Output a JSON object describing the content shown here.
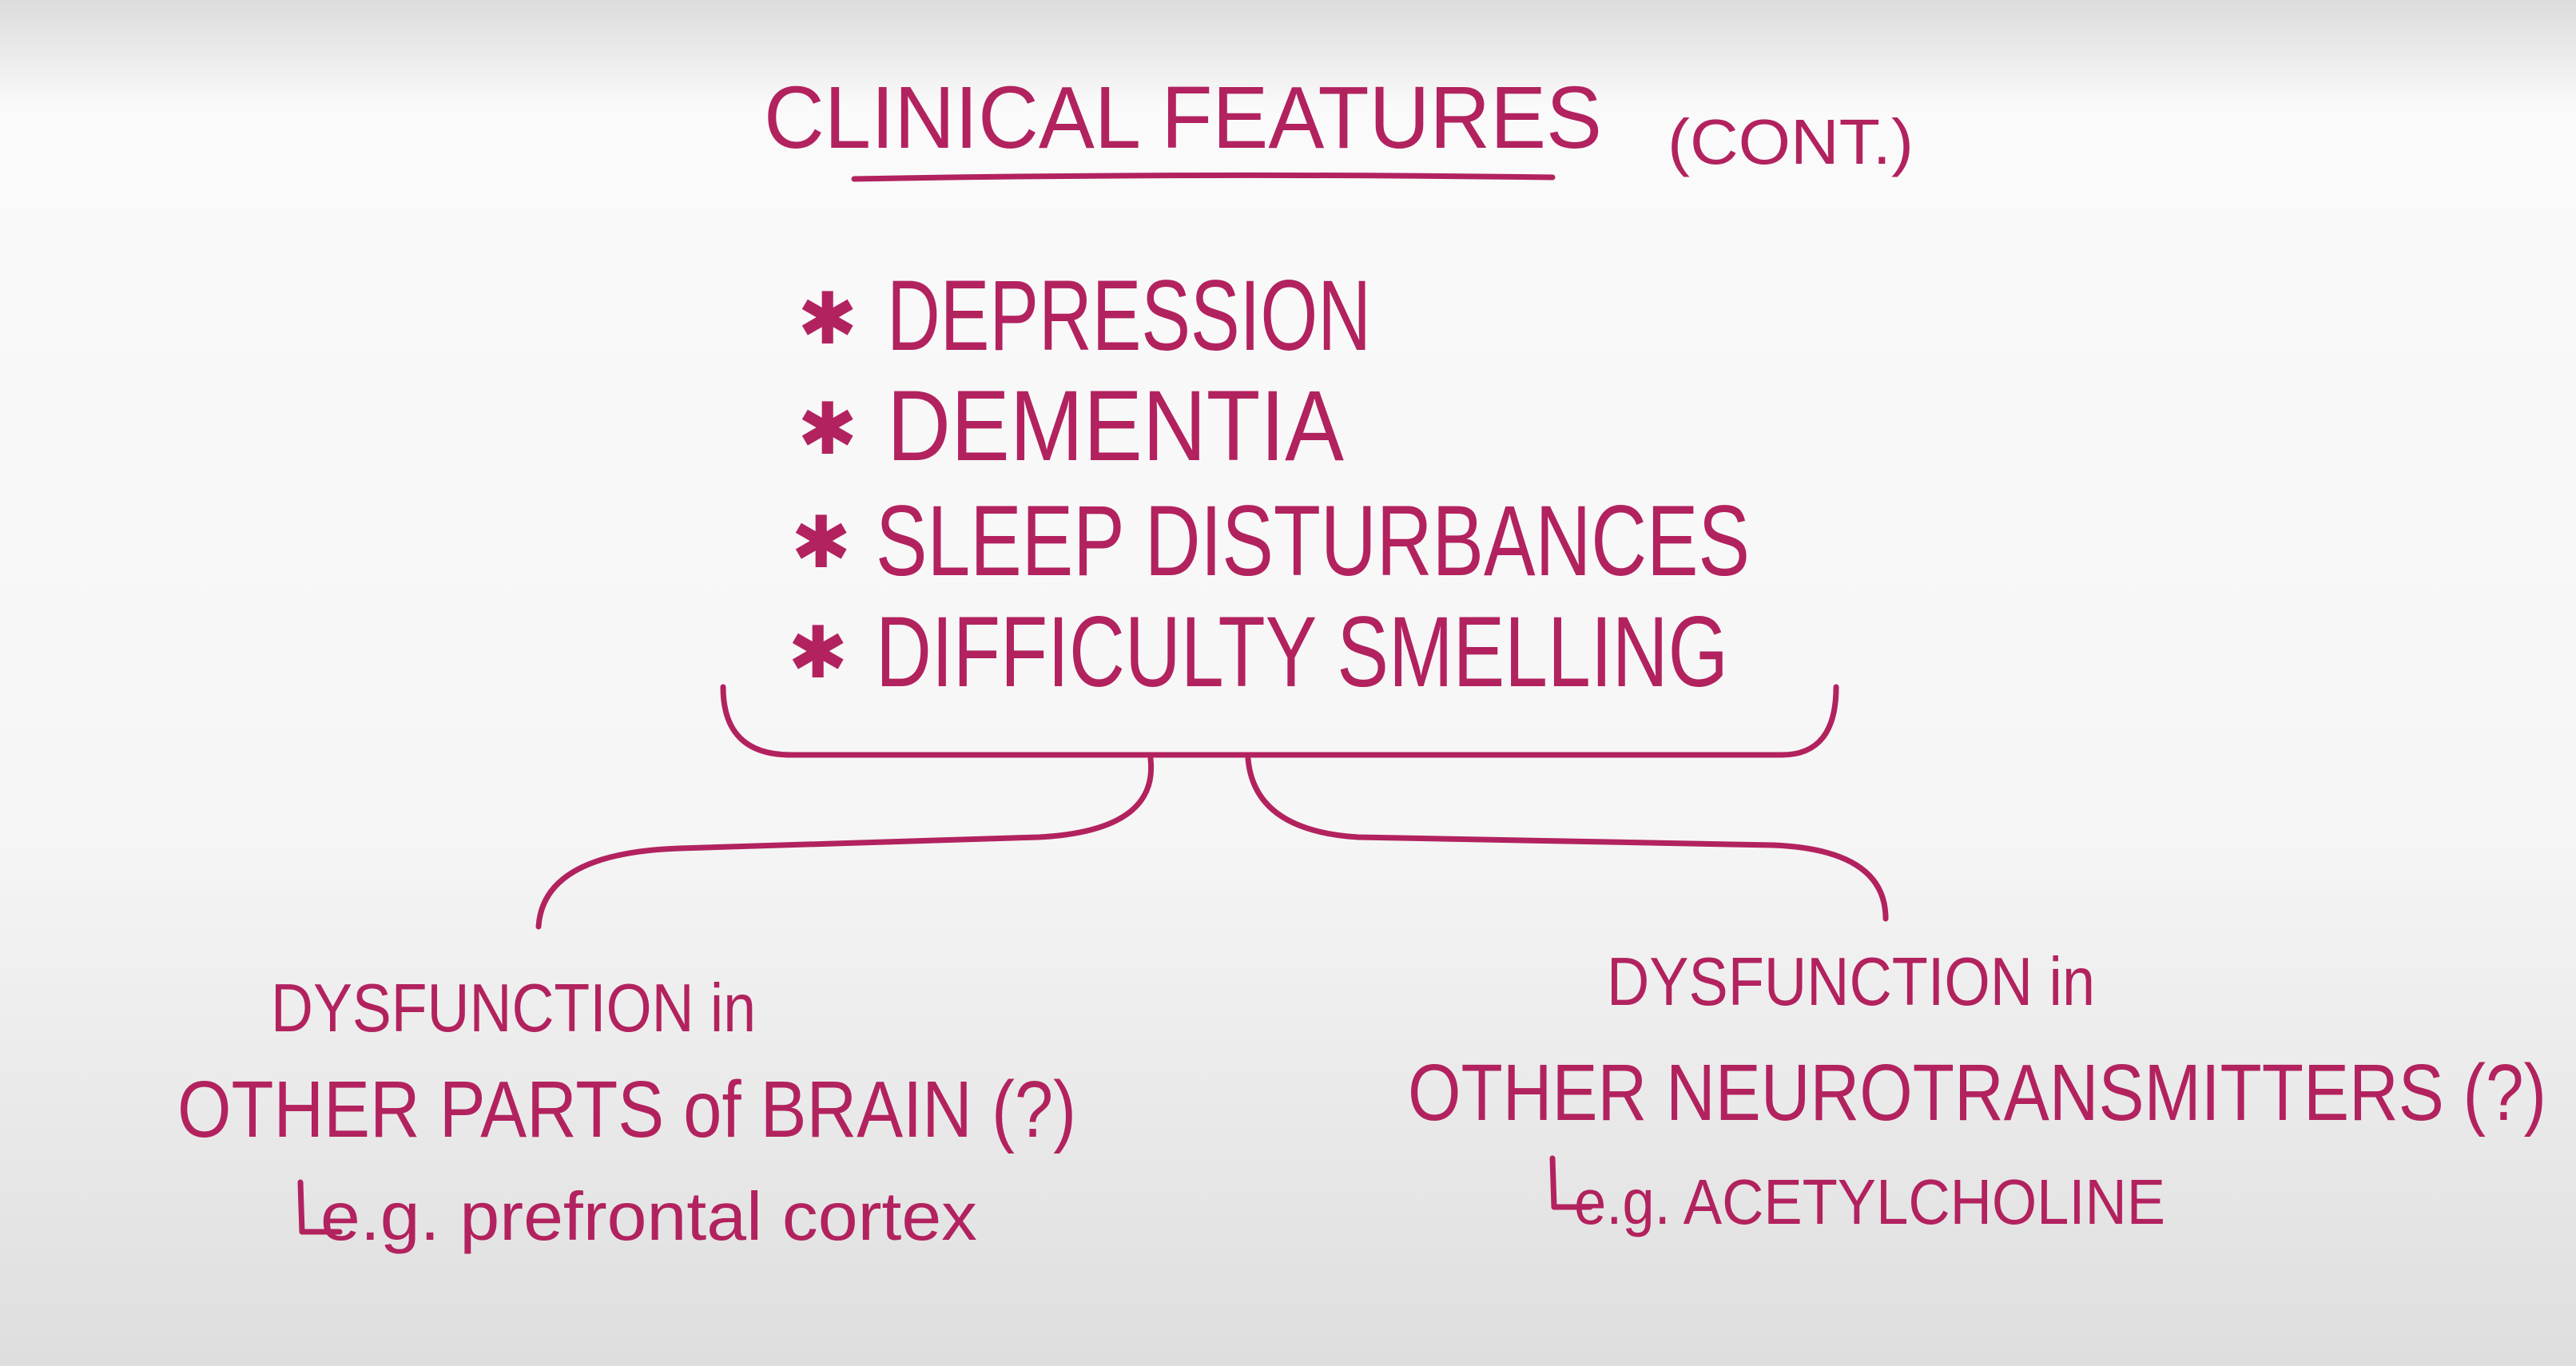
{
  "header": {
    "title": "CLINICAL FEATURES",
    "subtitle": "(CONT.)"
  },
  "items": [
    "DEPRESSION",
    "DEMENTIA",
    "SLEEP DISTURBANCES",
    "DIFFICULTY SMELLING"
  ],
  "branches": [
    {
      "line1": "DYSFUNCTION in",
      "line2": "OTHER PARTS of BRAIN (?)",
      "example": "e.g. prefrontal cortex"
    },
    {
      "line1": "DYSFUNCTION in",
      "line2": "OTHER NEUROTRANSMITTERS (?)",
      "example": "e.g. ACETYLCHOLINE"
    }
  ]
}
